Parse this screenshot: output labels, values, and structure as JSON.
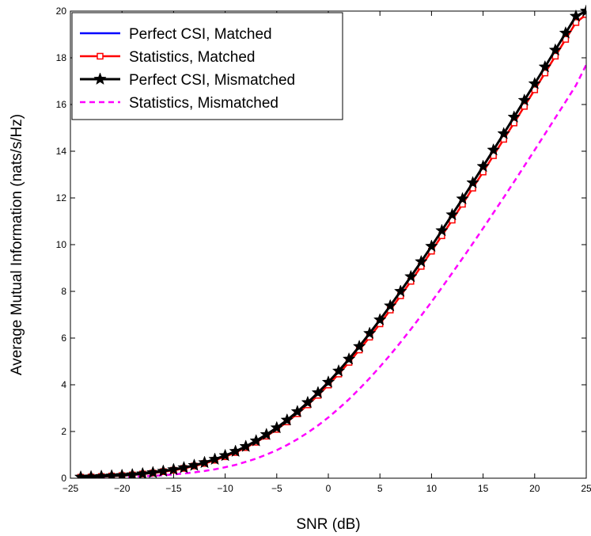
{
  "chart_data": {
    "type": "line",
    "title": "",
    "xlabel": "SNR (dB)",
    "ylabel": "Average Mutual Information (nats/s/Hz)",
    "xlim": [
      -25,
      25
    ],
    "ylim": [
      0,
      20
    ],
    "xticks": [
      -25,
      -20,
      -15,
      -10,
      -5,
      0,
      5,
      10,
      15,
      20,
      25
    ],
    "xtick_labels": [
      "−25",
      "−20",
      "−15",
      "−10",
      "−5",
      "0",
      "5",
      "10",
      "15",
      "20",
      "25"
    ],
    "yticks": [
      0,
      2,
      4,
      6,
      8,
      10,
      12,
      14,
      16,
      18,
      20
    ],
    "ytick_labels": [
      "0",
      "2",
      "4",
      "6",
      "8",
      "10",
      "12",
      "14",
      "16",
      "18",
      "20"
    ],
    "grid": false,
    "legend_position": "top-left",
    "x": [
      -24,
      -23,
      -22,
      -21,
      -20,
      -19,
      -18,
      -17,
      -16,
      -15,
      -14,
      -13,
      -12,
      -11,
      -10,
      -9,
      -8,
      -7,
      -6,
      -5,
      -4,
      -3,
      -2,
      -1,
      0,
      1,
      2,
      3,
      4,
      5,
      6,
      7,
      8,
      9,
      10,
      11,
      12,
      13,
      14,
      15,
      16,
      17,
      18,
      19,
      20,
      21,
      22,
      23,
      24,
      25
    ],
    "series": [
      {
        "name": "Perfect CSI, Matched",
        "color": "#0000ff",
        "style": "solid",
        "marker": "none",
        "values": [
          0.05,
          0.06,
          0.08,
          0.1,
          0.12,
          0.15,
          0.19,
          0.24,
          0.3,
          0.37,
          0.45,
          0.55,
          0.67,
          0.81,
          0.97,
          1.15,
          1.36,
          1.6,
          1.87,
          2.16,
          2.49,
          2.85,
          3.24,
          3.66,
          4.11,
          4.59,
          5.1,
          5.64,
          6.2,
          6.78,
          7.38,
          8.0,
          8.63,
          9.27,
          9.93,
          10.6,
          11.28,
          11.96,
          12.65,
          13.35,
          14.05,
          14.75,
          15.46,
          16.18,
          16.89,
          17.61,
          18.33,
          19.06,
          19.78,
          20.0
        ]
      },
      {
        "name": "Statistics, Matched",
        "color": "#ff0000",
        "style": "solid",
        "marker": "square",
        "values": [
          0.04,
          0.05,
          0.07,
          0.09,
          0.11,
          0.14,
          0.18,
          0.22,
          0.28,
          0.34,
          0.42,
          0.52,
          0.63,
          0.77,
          0.92,
          1.1,
          1.31,
          1.54,
          1.8,
          2.09,
          2.41,
          2.76,
          3.14,
          3.55,
          3.99,
          4.46,
          4.96,
          5.49,
          6.04,
          6.61,
          7.2,
          7.81,
          8.43,
          9.07,
          9.72,
          10.38,
          11.05,
          11.73,
          12.42,
          13.11,
          13.81,
          14.51,
          15.21,
          15.92,
          16.63,
          17.35,
          18.07,
          18.79,
          19.51,
          19.85
        ]
      },
      {
        "name": "Perfect CSI, Mismatched",
        "color": "#000000",
        "style": "solid",
        "marker": "star",
        "values": [
          0.05,
          0.06,
          0.08,
          0.1,
          0.12,
          0.15,
          0.19,
          0.24,
          0.3,
          0.37,
          0.45,
          0.55,
          0.67,
          0.81,
          0.97,
          1.15,
          1.36,
          1.6,
          1.87,
          2.16,
          2.49,
          2.85,
          3.24,
          3.66,
          4.11,
          4.59,
          5.1,
          5.64,
          6.2,
          6.78,
          7.38,
          8.0,
          8.63,
          9.27,
          9.93,
          10.6,
          11.28,
          11.96,
          12.65,
          13.35,
          14.05,
          14.75,
          15.46,
          16.18,
          16.89,
          17.61,
          18.33,
          19.06,
          19.78,
          20.0
        ]
      },
      {
        "name": "Statistics, Mismatched",
        "color": "#ff00ff",
        "style": "dashed",
        "marker": "none",
        "values": [
          0.02,
          0.02,
          0.03,
          0.04,
          0.05,
          0.06,
          0.08,
          0.1,
          0.13,
          0.16,
          0.2,
          0.25,
          0.31,
          0.38,
          0.47,
          0.57,
          0.7,
          0.84,
          1.01,
          1.2,
          1.42,
          1.67,
          1.95,
          2.26,
          2.6,
          2.98,
          3.38,
          3.82,
          4.28,
          4.77,
          5.28,
          5.82,
          6.38,
          6.96,
          7.55,
          8.16,
          8.78,
          9.41,
          10.05,
          10.7,
          11.36,
          12.02,
          12.69,
          13.37,
          14.05,
          14.74,
          15.43,
          16.12,
          16.82,
          17.7
        ]
      }
    ]
  }
}
